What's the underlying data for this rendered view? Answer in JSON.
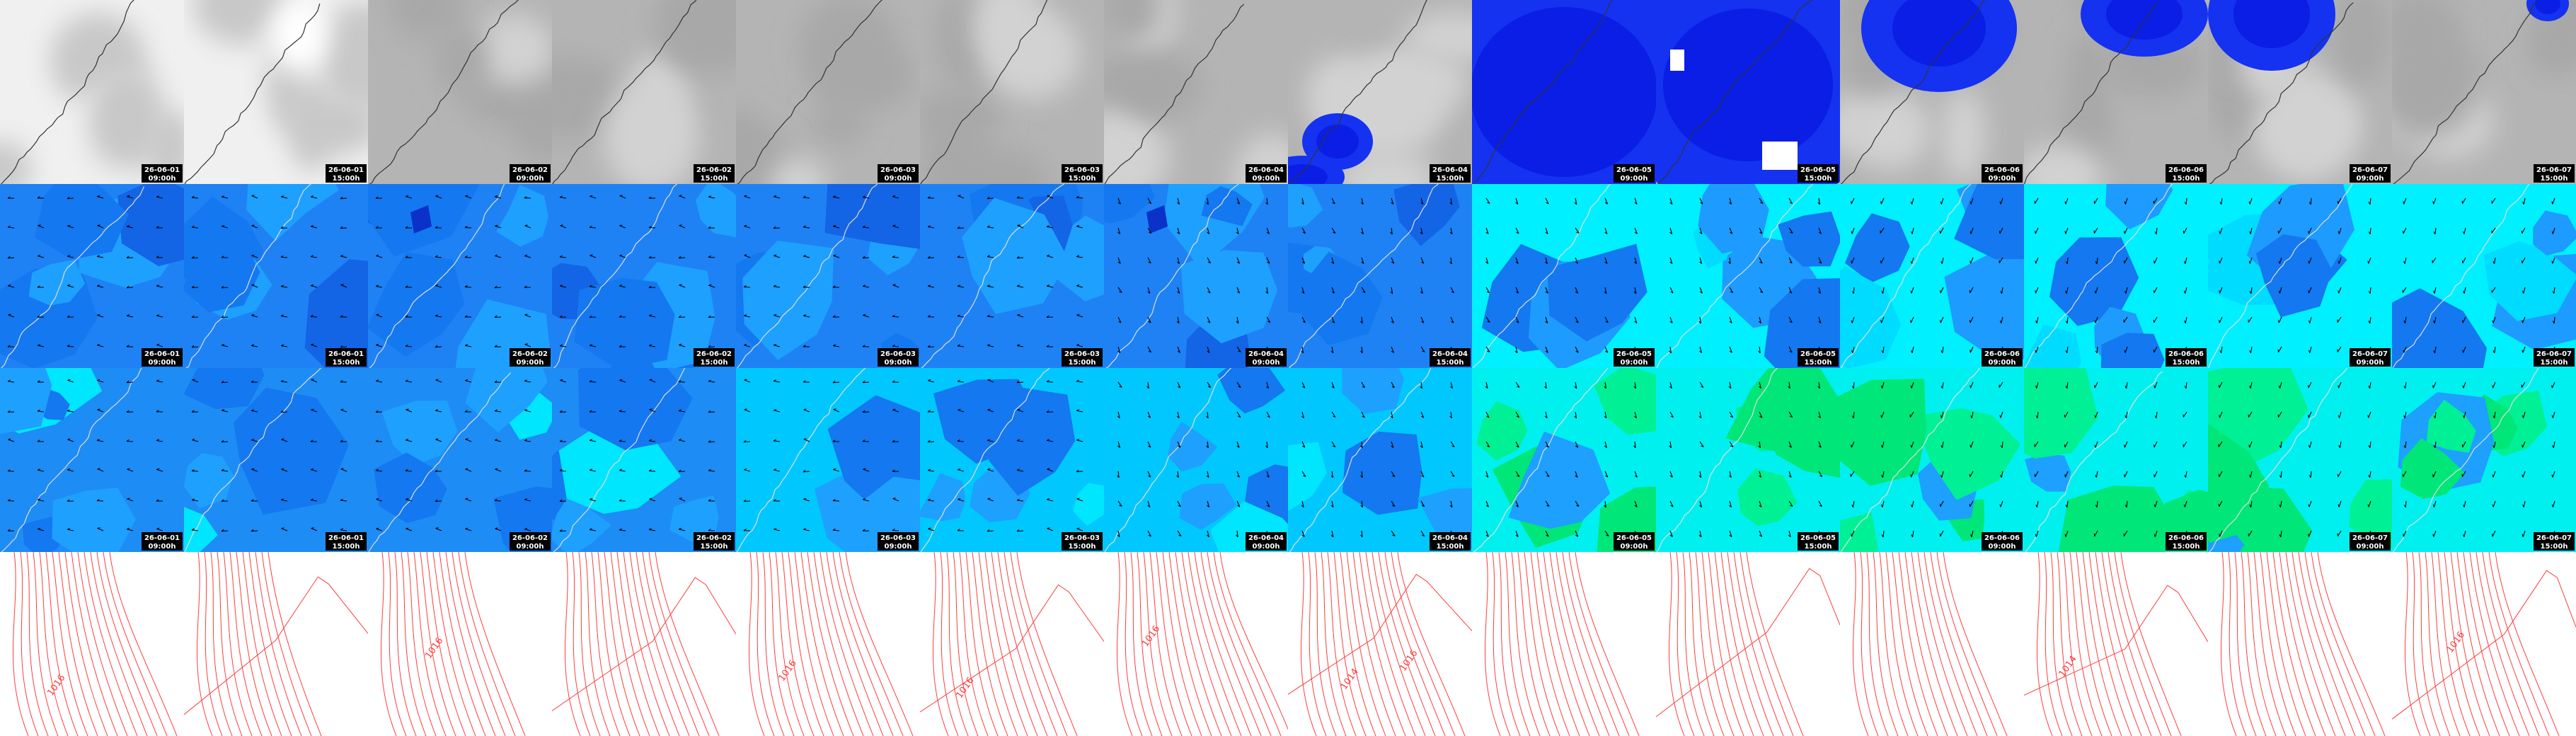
{
  "columns": [
    {
      "date": "26-06-01",
      "time": "09:00h"
    },
    {
      "date": "26-06-01",
      "time": "15:00h"
    },
    {
      "date": "26-06-02",
      "time": "09:00h"
    },
    {
      "date": "26-06-02",
      "time": "15:00h"
    },
    {
      "date": "26-06-03",
      "time": "09:00h"
    },
    {
      "date": "26-06-03",
      "time": "15:00h"
    },
    {
      "date": "26-06-04",
      "time": "09:00h"
    },
    {
      "date": "26-06-04",
      "time": "15:00h"
    },
    {
      "date": "26-06-05",
      "time": "09:00h"
    },
    {
      "date": "26-06-05",
      "time": "15:00h"
    },
    {
      "date": "26-06-06",
      "time": "09:00h"
    },
    {
      "date": "26-06-06",
      "time": "15:00h"
    },
    {
      "date": "26-06-07",
      "time": "09:00h"
    },
    {
      "date": "26-06-07",
      "time": "15:00h"
    }
  ],
  "pressure_labels": [
    [
      "1016"
    ],
    [],
    [
      "1016"
    ],
    [],
    [
      "1016"
    ],
    [
      "1016"
    ],
    [
      "1016"
    ],
    [
      "1014",
      "1016"
    ],
    [],
    [],
    [],
    [
      "1014"
    ],
    [],
    [
      "1016"
    ]
  ]
}
